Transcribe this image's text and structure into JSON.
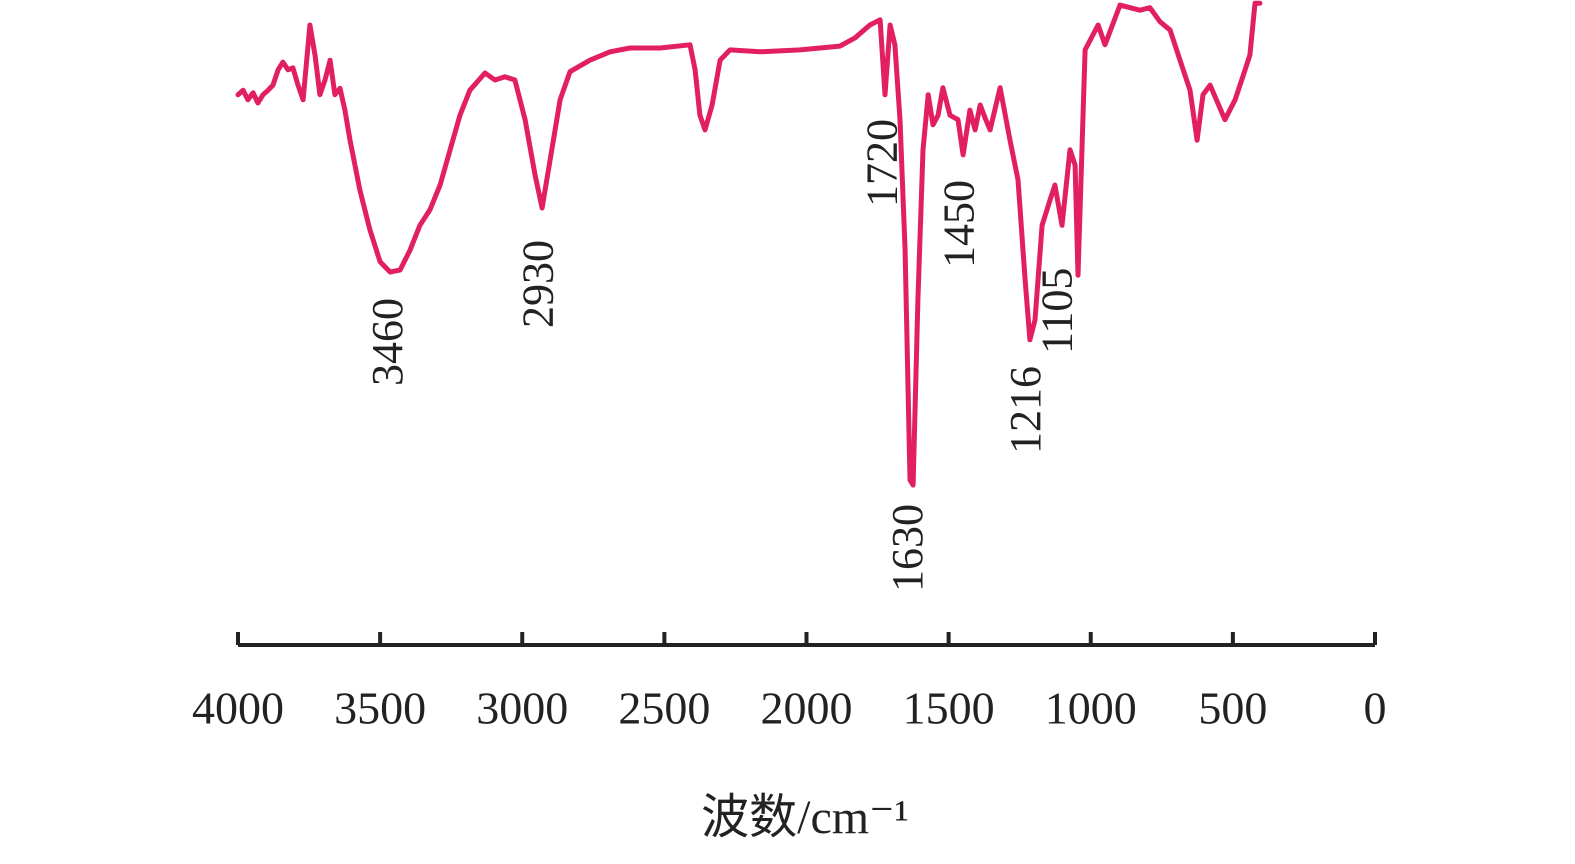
{
  "chart_data": {
    "type": "line",
    "x_label": "波数/cm⁻¹",
    "xlim": [
      4000,
      0
    ],
    "xticks": [
      4000,
      3500,
      3000,
      2500,
      2000,
      1500,
      1000,
      500,
      0
    ],
    "ylim": [
      0,
      100
    ],
    "series": [
      {
        "color": "#e3205f",
        "x": [
          4000,
          3982,
          3965,
          3947,
          3930,
          3912,
          3894,
          3877,
          3859,
          3842,
          3824,
          3807,
          3789,
          3771,
          3747,
          3729,
          3712,
          3694,
          3676,
          3659,
          3641,
          3624,
          3606,
          3571,
          3536,
          3500,
          3465,
          3430,
          3395,
          3360,
          3325,
          3289,
          3254,
          3219,
          3184,
          3131,
          3096,
          3061,
          3026,
          2990,
          2955,
          2930,
          2902,
          2867,
          2832,
          2762,
          2691,
          2621,
          2515,
          2410,
          2392,
          2375,
          2357,
          2332,
          2304,
          2269,
          2164,
          2023,
          1882,
          1829,
          1777,
          1741,
          1724,
          1706,
          1689,
          1671,
          1653,
          1636,
          1625,
          1608,
          1590,
          1572,
          1555,
          1537,
          1520,
          1495,
          1467,
          1449,
          1425,
          1407,
          1389,
          1372,
          1354,
          1319,
          1284,
          1256,
          1231,
          1214,
          1196,
          1171,
          1143,
          1126,
          1101,
          1073,
          1055,
          1045,
          1020,
          974,
          950,
          897,
          862,
          827,
          792,
          756,
          721,
          686,
          651,
          626,
          605,
          580,
          528,
          492,
          457,
          440,
          422,
          405
        ],
        "values": [
          85.2,
          85.9,
          84.4,
          85.5,
          83.9,
          85.2,
          85.9,
          86.7,
          89.1,
          90.3,
          89.1,
          89.4,
          86.7,
          84.4,
          96.1,
          91.4,
          85.2,
          87.5,
          90.6,
          85.2,
          86.2,
          82.8,
          78.1,
          70.3,
          64.1,
          59.1,
          57.5,
          57.8,
          60.9,
          64.8,
          67.2,
          71.1,
          76.6,
          82.0,
          85.9,
          88.6,
          87.5,
          88.0,
          87.5,
          81.3,
          72.7,
          67.5,
          75.0,
          84.4,
          88.8,
          90.6,
          91.9,
          92.5,
          92.5,
          93.0,
          89.1,
          82.0,
          79.7,
          83.6,
          90.6,
          92.2,
          91.9,
          92.2,
          92.8,
          94.1,
          96.1,
          96.9,
          85.2,
          96.1,
          93.0,
          81.3,
          60.9,
          25.0,
          24.2,
          53.1,
          76.6,
          85.2,
          80.5,
          82.0,
          86.3,
          82.0,
          81.3,
          75.8,
          82.8,
          79.7,
          83.6,
          81.6,
          79.7,
          86.3,
          78.1,
          71.9,
          56.3,
          46.9,
          50.0,
          64.8,
          68.8,
          71.1,
          64.8,
          76.6,
          74.2,
          57.0,
          92.2,
          96.1,
          93.0,
          99.2,
          98.8,
          98.4,
          98.8,
          96.6,
          95.3,
          90.6,
          85.9,
          78.1,
          85.2,
          86.7,
          81.3,
          84.4,
          89.1,
          91.4,
          99.5,
          99.5
        ]
      }
    ],
    "annotations": [
      {
        "label": "3460",
        "x": 3460
      },
      {
        "label": "2930",
        "x": 2930
      },
      {
        "label": "1720",
        "x": 1720
      },
      {
        "label": "1630",
        "x": 1630
      },
      {
        "label": "1450",
        "x": 1450
      },
      {
        "label": "1216",
        "x": 1216
      },
      {
        "label": "1105",
        "x": 1105
      }
    ]
  }
}
